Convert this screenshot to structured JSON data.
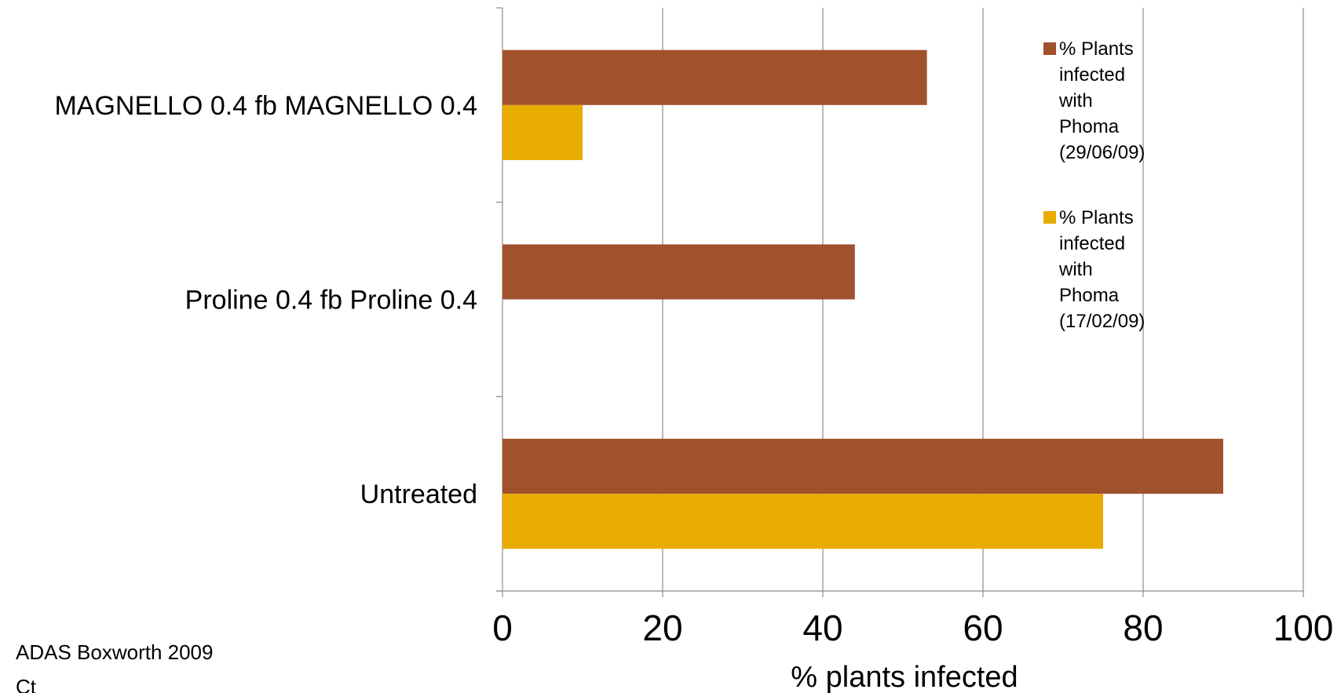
{
  "chart_data": {
    "type": "bar",
    "orientation": "horizontal",
    "categories": [
      "MAGNELLO 0.4 fb MAGNELLO 0.4",
      "Proline 0.4 fb Proline 0.4",
      "Untreated"
    ],
    "series": [
      {
        "name": "% Plants infected with Phoma (29/06/09)",
        "values": [
          53,
          44,
          90
        ],
        "color": "#A0522D"
      },
      {
        "name": "% Plants infected with Phoma (17/02/09)",
        "values": [
          10,
          0,
          75
        ],
        "color": "#E8AB00"
      }
    ],
    "legend_lines": [
      [
        "% Plants",
        "infected",
        "with",
        "Phoma",
        "(29/06/09)"
      ],
      [
        "% Plants",
        "infected",
        "with",
        "Phoma",
        "(17/02/09)"
      ]
    ],
    "xlabel": "% plants infected",
    "xlim": [
      0,
      100
    ],
    "xticks": [
      0,
      20,
      40,
      60,
      80,
      100
    ],
    "grid": "vertical",
    "legend_position": "top-right"
  },
  "footnotes": {
    "source": "ADAS Boxworth 2009",
    "partial": "Ct"
  }
}
